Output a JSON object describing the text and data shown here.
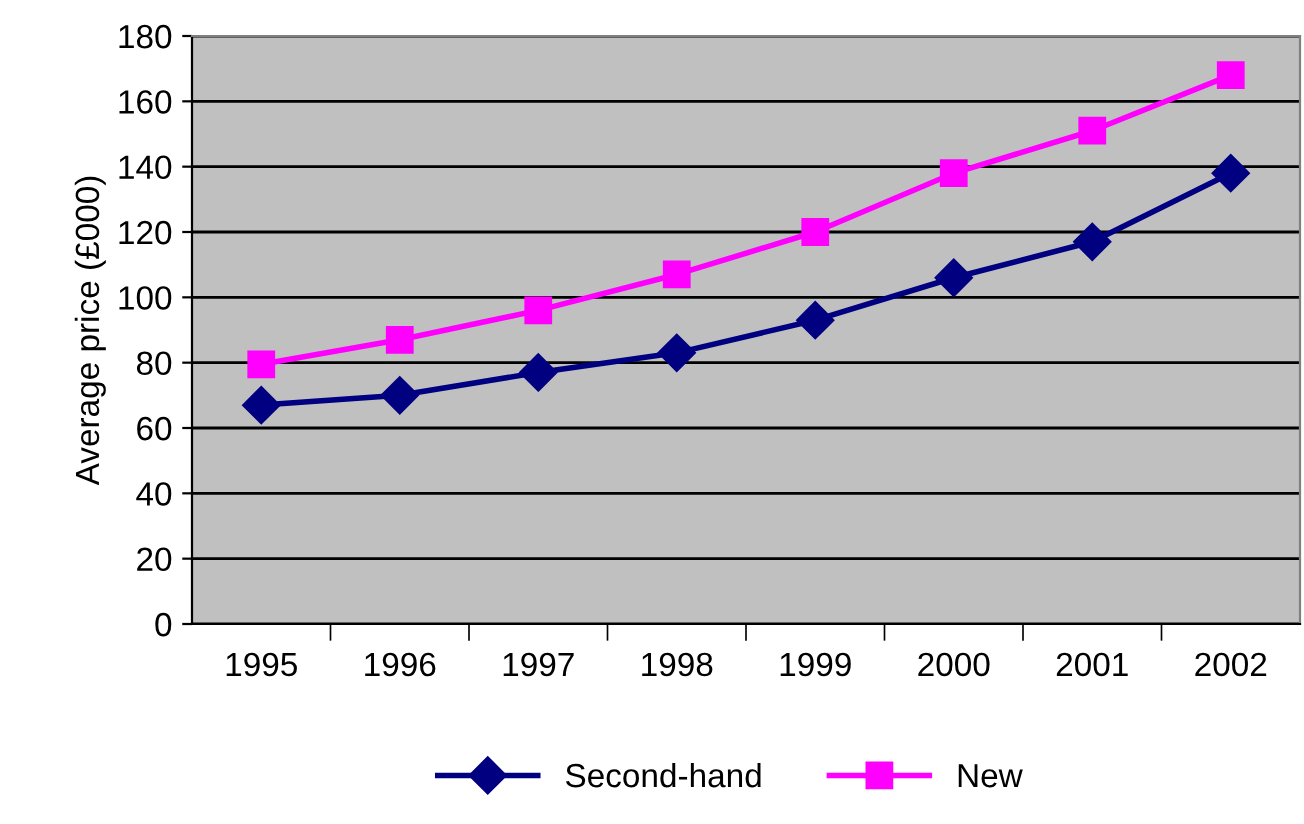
{
  "chart_data": {
    "type": "line",
    "ylabel": "Average price (£000)",
    "categories": [
      "1995",
      "1996",
      "1997",
      "1998",
      "1999",
      "2000",
      "2001",
      "2002"
    ],
    "series": [
      {
        "name": "Second-hand",
        "color": "#000080",
        "marker": "diamond",
        "values": [
          67,
          70,
          77,
          83,
          93,
          106,
          117,
          138
        ]
      },
      {
        "name": "New",
        "color": "#ff00ff",
        "marker": "square",
        "values": [
          79.5,
          87,
          96,
          107,
          120,
          138,
          151,
          168
        ]
      }
    ],
    "ylim": [
      0,
      180
    ],
    "yticks": [
      0,
      20,
      40,
      60,
      80,
      100,
      120,
      140,
      160,
      180
    ],
    "grid": "y",
    "legend": "bottom",
    "line_style": "solid"
  }
}
